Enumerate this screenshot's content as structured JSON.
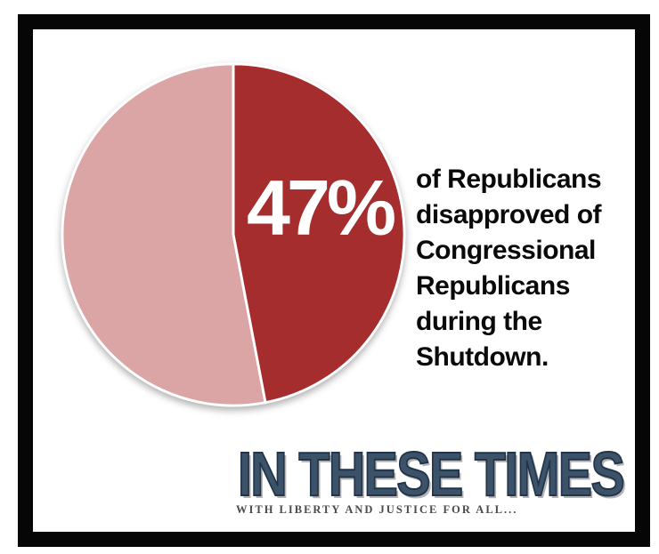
{
  "chart_data": {
    "type": "pie",
    "title": "",
    "slices": [
      {
        "label": "47%",
        "value": 47,
        "color": "#A52D2D",
        "label_color": "#FFFFFF"
      },
      {
        "label": "",
        "value": 53,
        "color": "#DBA5A5",
        "label_color": ""
      }
    ],
    "start_angle_deg": 0,
    "direction": "clockwise",
    "divider_color": "#FFFFFF",
    "legend": "none",
    "annotation": "of Republicans\ndisapproved of\nCongressional\nRepublicans\nduring the\nShutdown."
  },
  "branding": {
    "publication": "IN THESE TIMES",
    "tagline": "WITH LIBERTY AND JUSTICE FOR ALL...",
    "logo_color": "#3B5269",
    "tagline_color": "#4A4A4A"
  }
}
